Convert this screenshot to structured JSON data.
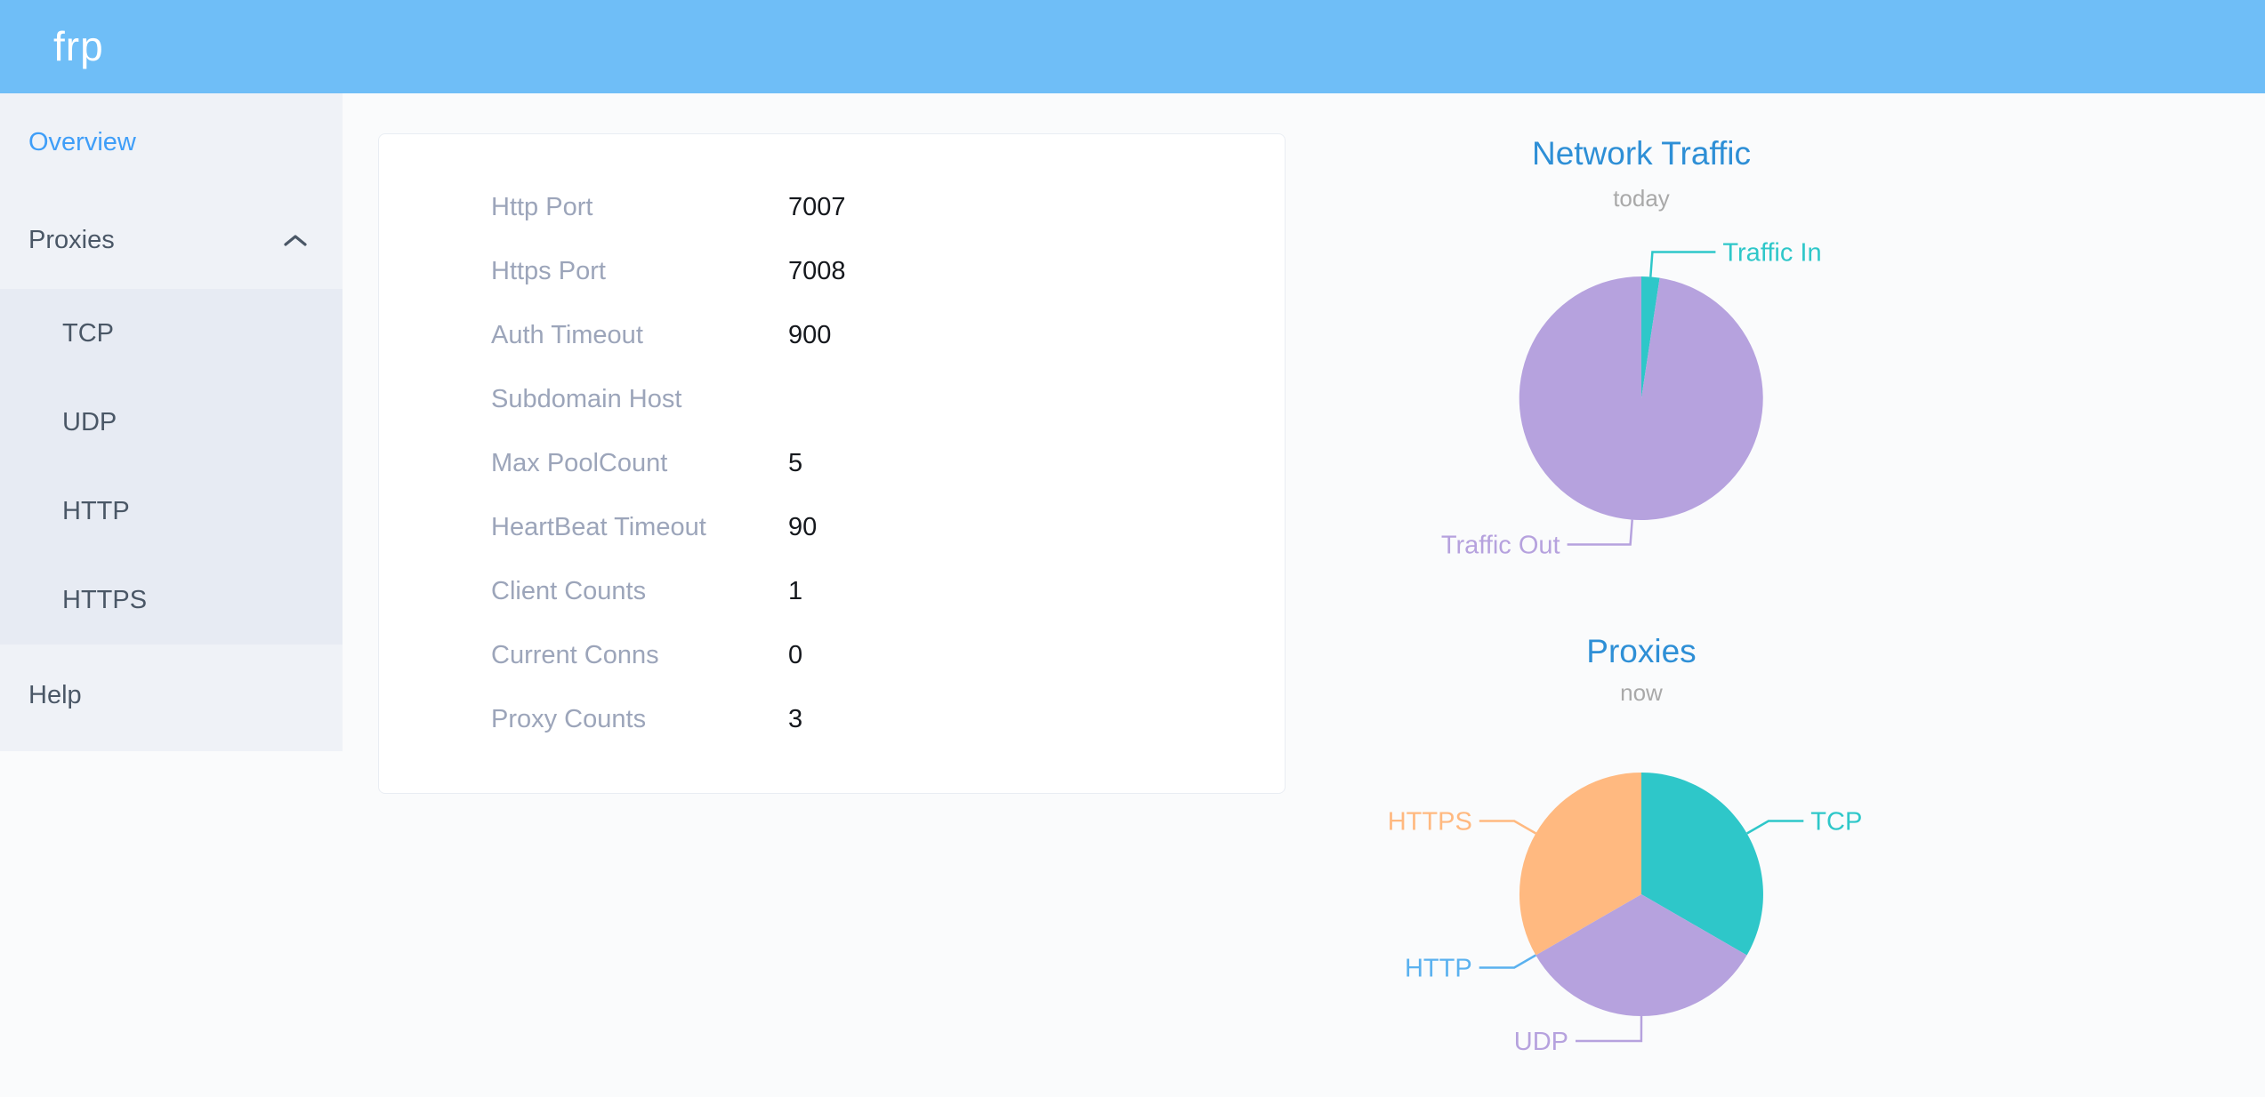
{
  "header": {
    "logo": "frp"
  },
  "colors": {
    "header_bg": "#6fbef7",
    "sidebar_active": "#3f9ef8",
    "chart_title": "#2e8fd6",
    "teal": "#2ec7c9",
    "purple": "#b6a2de",
    "blue": "#5ab1ef",
    "orange": "#ffb980"
  },
  "sidebar": {
    "items": [
      {
        "label": "Overview",
        "active": true
      },
      {
        "label": "Proxies",
        "expanded": true
      },
      {
        "label": "TCP"
      },
      {
        "label": "UDP"
      },
      {
        "label": "HTTP"
      },
      {
        "label": "HTTPS"
      },
      {
        "label": "Help"
      }
    ]
  },
  "overview_card": {
    "rows": [
      {
        "label": "Http Port",
        "value": "7007"
      },
      {
        "label": "Https Port",
        "value": "7008"
      },
      {
        "label": "Auth Timeout",
        "value": "900"
      },
      {
        "label": "Subdomain Host",
        "value": ""
      },
      {
        "label": "Max PoolCount",
        "value": "5"
      },
      {
        "label": "HeartBeat Timeout",
        "value": "90"
      },
      {
        "label": "Client Counts",
        "value": "1"
      },
      {
        "label": "Current Conns",
        "value": "0"
      },
      {
        "label": "Proxy Counts",
        "value": "3"
      }
    ]
  },
  "chart_data": [
    {
      "type": "pie",
      "title": "Network Traffic",
      "subtitle": "today",
      "legend_position": "callout-labels",
      "slices": [
        {
          "label": "Traffic In",
          "percent": 2.4,
          "color": "#2ec7c9"
        },
        {
          "label": "Traffic Out",
          "percent": 97.6,
          "color": "#b6a2de"
        }
      ]
    },
    {
      "type": "pie",
      "title": "Proxies",
      "subtitle": "now",
      "legend_position": "callout-labels",
      "slices": [
        {
          "label": "TCP",
          "count": 1,
          "percent": 33.34,
          "color": "#2ec7c9"
        },
        {
          "label": "UDP",
          "count": 1,
          "percent": 33.33,
          "color": "#b6a2de"
        },
        {
          "label": "HTTP",
          "count": 0,
          "percent": 0,
          "color": "#5ab1ef"
        },
        {
          "label": "HTTPS",
          "count": 1,
          "percent": 33.33,
          "color": "#ffb980"
        }
      ]
    }
  ]
}
